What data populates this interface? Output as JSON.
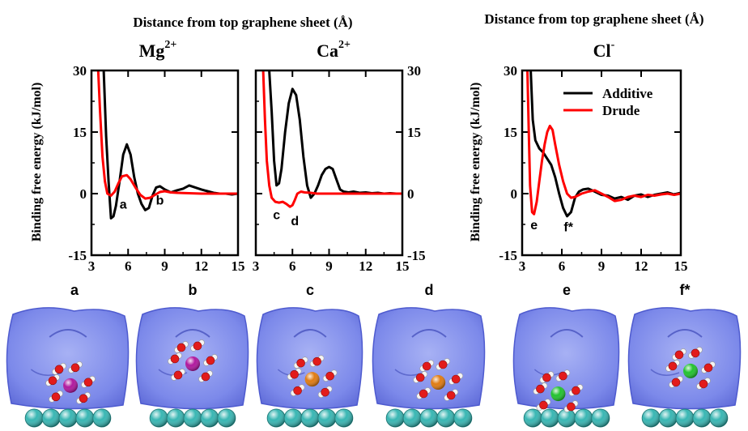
{
  "colors": {
    "additive": "#000000",
    "drude": "#ff0000",
    "surface": "#6f7fe8",
    "graphene": "#38b6b3",
    "oxygen": "#e21b1b",
    "hydrogen": "#f4f4f4",
    "mg": "#b0179e",
    "ca": "#e07b12",
    "cl": "#22c22e"
  },
  "header": {
    "left_title": "Distance from top graphene sheet (Å)",
    "right_title": "Distance from top graphene sheet (Å)",
    "ylabel": "Binding free energy (kJ/mol)"
  },
  "chart_data": [
    {
      "type": "line",
      "ion_base": "Mg",
      "ion_sup": "2+",
      "xlim": [
        3,
        15
      ],
      "ylim": [
        -15,
        30
      ],
      "xticks": [
        "3",
        "6",
        "9",
        "12",
        "15"
      ],
      "yticks": [
        "-15",
        "0",
        "15",
        "30"
      ],
      "series": [
        {
          "name": "Additive",
          "x": [
            4.0,
            4.2,
            4.4,
            4.6,
            4.8,
            5.0,
            5.3,
            5.6,
            5.9,
            6.2,
            6.5,
            6.8,
            7.1,
            7.4,
            7.7,
            8.0,
            8.3,
            8.6,
            9.0,
            9.5,
            10.0,
            10.5,
            11.0,
            11.5,
            12.0,
            12.5,
            13.0,
            13.5,
            14.0,
            14.5,
            15.0
          ],
          "y": [
            30,
            14,
            3,
            -6,
            -5.5,
            -3,
            3,
            9.5,
            12,
            9.5,
            4,
            0,
            -2.5,
            -4,
            -3.5,
            -0.5,
            1.5,
            1.8,
            1.0,
            0.3,
            0.8,
            1.2,
            2.0,
            1.5,
            1.0,
            0.6,
            0.2,
            0.0,
            0.0,
            -0.2,
            0.0
          ]
        },
        {
          "name": "Drude",
          "x": [
            3.55,
            3.7,
            3.9,
            4.1,
            4.3,
            4.6,
            4.9,
            5.2,
            5.5,
            5.9,
            6.2,
            6.6,
            7.0,
            7.4,
            7.8,
            8.2,
            8.6,
            9.0,
            9.5,
            10.0,
            11.0,
            12.0,
            13.0,
            14.0,
            15.0
          ],
          "y": [
            30,
            20,
            9,
            3,
            0,
            -0.5,
            0.5,
            2.5,
            4.2,
            4.5,
            3.5,
            1.5,
            -0.3,
            -1.2,
            -1.0,
            -0.3,
            0.4,
            0.6,
            0.3,
            0.2,
            0.1,
            0.0,
            0.0,
            0.0,
            0.0
          ]
        }
      ],
      "annotations": [
        {
          "text": "a",
          "x": 5.6,
          "y": -2.5
        },
        {
          "text": "b",
          "x": 8.6,
          "y": -1.5
        }
      ]
    },
    {
      "type": "line",
      "ion_base": "Ca",
      "ion_sup": "2+",
      "xlim": [
        3,
        15
      ],
      "ylim": [
        -15,
        30
      ],
      "xticks": [
        "3",
        "6",
        "9",
        "12",
        "15"
      ],
      "yticks": [
        "-15",
        "0",
        "15",
        "30"
      ],
      "series": [
        {
          "name": "Additive",
          "x": [
            4.1,
            4.3,
            4.5,
            4.7,
            4.9,
            5.1,
            5.4,
            5.7,
            6.0,
            6.3,
            6.6,
            6.9,
            7.2,
            7.5,
            7.8,
            8.1,
            8.4,
            8.7,
            9.0,
            9.3,
            9.6,
            9.9,
            10.2,
            10.6,
            11.0,
            11.5,
            12.0,
            12.5,
            13.0,
            13.5,
            14.0,
            14.5,
            15.0
          ],
          "y": [
            30,
            20,
            8,
            2,
            2.5,
            6,
            15,
            22,
            25.5,
            24,
            18,
            9,
            2,
            -1,
            0,
            2,
            4.5,
            6,
            6.5,
            6,
            3.5,
            1,
            0.5,
            0.3,
            0.5,
            0.2,
            0.3,
            0.1,
            0.2,
            0.0,
            0.1,
            0.0,
            0.0
          ]
        },
        {
          "name": "Drude",
          "x": [
            3.6,
            3.75,
            3.9,
            4.1,
            4.3,
            4.6,
            4.9,
            5.2,
            5.5,
            5.8,
            6.0,
            6.2,
            6.4,
            6.7,
            7.0,
            7.5,
            8.0,
            9.0,
            10.0,
            11.0,
            12.0,
            13.0,
            14.0,
            15.0
          ],
          "y": [
            30,
            18,
            8,
            2,
            -1,
            -2,
            -2.2,
            -2,
            -2.5,
            -3.2,
            -2.8,
            -1.5,
            0,
            0.5,
            0.3,
            0.2,
            0.0,
            0.0,
            0.0,
            0.0,
            0.0,
            0.0,
            0.0,
            0.0
          ]
        }
      ],
      "annotations": [
        {
          "text": "c",
          "x": 4.7,
          "y": -5
        },
        {
          "text": "d",
          "x": 6.2,
          "y": -6.5
        }
      ]
    },
    {
      "type": "line",
      "ion_base": "Cl",
      "ion_sup": "-",
      "xlim": [
        3,
        15
      ],
      "ylim": [
        -15,
        30
      ],
      "xticks": [
        "3",
        "6",
        "9",
        "12",
        "15"
      ],
      "yticks": [
        "-15",
        "0",
        "15",
        "30"
      ],
      "legend": {
        "placement": "top-right",
        "entries": [
          "Additive",
          "Drude"
        ]
      },
      "series": [
        {
          "name": "Additive",
          "x": [
            3.65,
            3.8,
            4.0,
            4.3,
            4.6,
            4.9,
            5.2,
            5.5,
            5.8,
            6.1,
            6.4,
            6.7,
            7.0,
            7.3,
            7.6,
            8.0,
            8.5,
            9.0,
            9.5,
            10.0,
            10.5,
            11.0,
            11.5,
            12.0,
            12.5,
            13.0,
            13.5,
            14.0,
            14.5,
            15.0
          ],
          "y": [
            30,
            18,
            13,
            11,
            10,
            8.5,
            7,
            4,
            0,
            -3.5,
            -5.5,
            -4.5,
            -1,
            0.5,
            1,
            1.2,
            0.5,
            -0.3,
            -0.5,
            -1.2,
            -0.8,
            -1.5,
            -0.5,
            -0.2,
            -0.8,
            -0.3,
            0.0,
            0.3,
            -0.2,
            0.2
          ]
        },
        {
          "name": "Drude",
          "x": [
            3.4,
            3.5,
            3.6,
            3.75,
            3.9,
            4.1,
            4.3,
            4.5,
            4.7,
            4.9,
            5.1,
            5.3,
            5.5,
            5.8,
            6.1,
            6.4,
            6.7,
            7.0,
            7.5,
            8.0,
            8.5,
            9.0,
            9.5,
            10.0,
            10.5,
            11.0,
            11.5,
            12.0,
            12.5,
            13.0,
            13.5,
            14.0,
            14.5,
            15.0
          ],
          "y": [
            30,
            15,
            2,
            -4.5,
            -5,
            -2,
            3,
            8,
            12,
            15,
            16.5,
            15.5,
            12,
            7,
            3,
            0,
            -1,
            -0.8,
            0,
            0.5,
            0.8,
            0,
            -0.8,
            -1.8,
            -1.5,
            -0.8,
            -0.5,
            -0.8,
            -0.3,
            -0.5,
            -0.2,
            0.0,
            -0.3,
            0.0
          ]
        }
      ],
      "annotations": [
        {
          "text": "e",
          "x": 3.9,
          "y": -7.5
        },
        {
          "text": "f*",
          "x": 6.5,
          "y": -8
        }
      ]
    }
  ],
  "snapshots": [
    {
      "label": "a",
      "ion": "mg"
    },
    {
      "label": "b",
      "ion": "mg"
    },
    {
      "label": "c",
      "ion": "ca"
    },
    {
      "label": "d",
      "ion": "ca"
    },
    {
      "label": "e",
      "ion": "cl"
    },
    {
      "label": "f*",
      "ion": "cl"
    }
  ]
}
